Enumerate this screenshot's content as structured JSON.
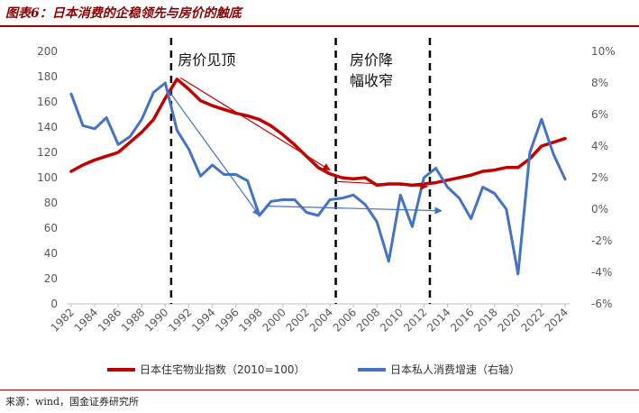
{
  "header": {
    "title": "图表6：日本消费的企稳领先与房价的触底"
  },
  "footer": {
    "source": "来源：wind，国金证券研究所"
  },
  "chart_data": {
    "type": "line",
    "title": "图表6：日本消费的企稳领先与房价的触底",
    "x": [
      1982,
      1983,
      1984,
      1985,
      1986,
      1987,
      1988,
      1989,
      1990,
      1991,
      1992,
      1993,
      1994,
      1995,
      1996,
      1997,
      1998,
      1999,
      2000,
      2001,
      2002,
      2003,
      2004,
      2005,
      2006,
      2007,
      2008,
      2009,
      2010,
      2011,
      2012,
      2013,
      2014,
      2015,
      2016,
      2017,
      2018,
      2019,
      2020,
      2021,
      2022,
      2023,
      2024
    ],
    "x_tick_labels": [
      "1982",
      "1984",
      "1986",
      "1988",
      "1990",
      "1992",
      "1994",
      "1996",
      "1998",
      "2000",
      "2002",
      "2004",
      "2006",
      "2008",
      "2010",
      "2012",
      "2014",
      "2016",
      "2018",
      "2020",
      "2022",
      "2024"
    ],
    "y_left": {
      "min": 0,
      "max": 200,
      "step": 20,
      "tick_labels": [
        "0",
        "20",
        "40",
        "60",
        "80",
        "100",
        "120",
        "140",
        "160",
        "180",
        "200"
      ]
    },
    "y_right": {
      "min": -6,
      "max": 10,
      "step": 2,
      "tick_labels": [
        "-6%",
        "-4%",
        "-2%",
        "0%",
        "2%",
        "4%",
        "6%",
        "8%",
        "10%"
      ]
    },
    "series": [
      {
        "name": "日本住宅物业指数（2010=100）",
        "axis": "left",
        "color": "#C00000",
        "values": [
          105,
          110,
          114,
          117,
          120,
          128,
          136,
          146,
          163,
          178,
          170,
          161,
          157,
          154,
          151,
          149,
          146,
          141,
          134,
          126,
          117,
          108,
          103,
          100,
          99,
          100,
          94,
          95,
          95,
          94,
          95,
          96,
          98,
          100,
          102,
          105,
          106,
          108,
          108,
          115,
          125,
          128,
          131
        ]
      },
      {
        "name": "日本私人消费增速（右轴）",
        "axis": "right",
        "color": "#4472C4",
        "values": [
          7.3,
          5.3,
          5.1,
          5.8,
          4.1,
          4.6,
          5.7,
          7.4,
          8.0,
          5.0,
          3.8,
          2.1,
          2.8,
          2.2,
          2.2,
          1.8,
          -0.4,
          0.5,
          0.6,
          0.6,
          -0.2,
          -0.4,
          0.6,
          0.7,
          0.9,
          0.3,
          -0.8,
          -3.3,
          0.9,
          -1.1,
          2.0,
          2.6,
          1.4,
          0.7,
          -0.6,
          1.4,
          1.0,
          0.0,
          -4.1,
          3.6,
          5.7,
          3.5,
          1.9
        ]
      }
    ],
    "annotations": {
      "labels": [
        {
          "text": "房价见顶",
          "year": 1990
        },
        {
          "text": "房价降",
          "year": 2004
        },
        {
          "text": "幅收窄",
          "year": 2004
        }
      ],
      "vertical_dashed_lines": [
        1990.5,
        2004.5,
        2012.5
      ],
      "red_arrows": [
        {
          "from": [
            1991.3,
            179
          ],
          "to": [
            2004,
            106
          ]
        },
        {
          "from": [
            2004.5,
            97
          ],
          "to": [
            2012.3,
            93
          ]
        }
      ],
      "blue_arrows": [
        {
          "from": [
            1990.3,
            7.5
          ],
          "to": [
            1998,
            -0.4
          ]
        },
        {
          "from": [
            1998.5,
            0.2
          ],
          "to": [
            2013.5,
            -0.1
          ]
        }
      ]
    },
    "legend_position": "bottom",
    "grid": false
  }
}
